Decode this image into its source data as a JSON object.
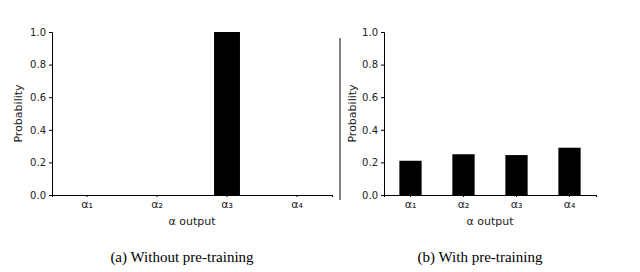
{
  "chart_data": [
    {
      "type": "bar",
      "title": "(a) Without pre-training",
      "categories": [
        "α₁",
        "α₂",
        "α₃",
        "α₄"
      ],
      "values": [
        0,
        0,
        1.0,
        0
      ],
      "color": "#000000",
      "x_label": "α output",
      "y_label": "Probability",
      "ylim": [
        0,
        1.0
      ],
      "yticks": [
        {
          "value": 0,
          "label": "0.0"
        },
        {
          "value": 0.2,
          "label": "0.2"
        },
        {
          "value": 0.4,
          "label": "0.4"
        },
        {
          "value": 0.6,
          "label": "0.6"
        },
        {
          "value": 0.8,
          "label": "0.8"
        },
        {
          "value": 1.0,
          "label": "1.0"
        }
      ],
      "grid": false
    },
    {
      "type": "bar",
      "title": "(b) With pre-training",
      "categories": [
        "α₁",
        "α₂",
        "α₃",
        "α₄"
      ],
      "values": [
        0.21,
        0.25,
        0.245,
        0.29
      ],
      "color": "#000000",
      "x_label": "α output",
      "y_label": "Probability",
      "ylim": [
        0,
        1.0
      ],
      "yticks": [
        {
          "value": 0,
          "label": "0.0"
        },
        {
          "value": 0.2,
          "label": "0.2"
        },
        {
          "value": 0.4,
          "label": "0.4"
        },
        {
          "value": 0.6,
          "label": "0.6"
        },
        {
          "value": 0.8,
          "label": "0.8"
        },
        {
          "value": 1.0,
          "label": "1.0"
        }
      ],
      "grid": false
    }
  ]
}
